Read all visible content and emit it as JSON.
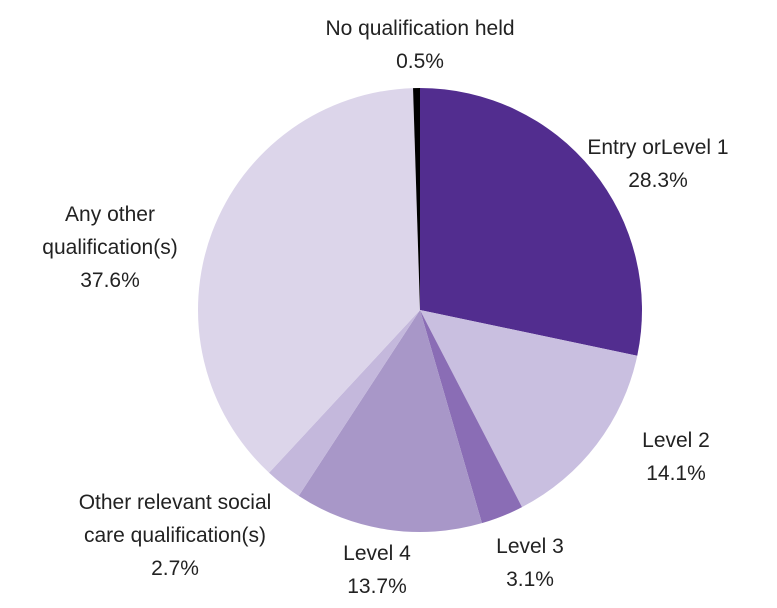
{
  "chart_data": {
    "type": "pie",
    "categories": [
      "Entry orLevel 1",
      "Level 2",
      "Level 3",
      "Level 4",
      "Other relevant social care qualification(s)",
      "Any other qualification(s)",
      "No qualification held"
    ],
    "values": [
      28.3,
      14.1,
      3.1,
      13.7,
      2.7,
      37.6,
      0.5
    ],
    "value_labels": [
      "28.3%",
      "14.1%",
      "3.1%",
      "13.7%",
      "2.7%",
      "37.6%",
      "0.5%"
    ],
    "colors": [
      "#522d8f",
      "#c9bfe0",
      "#8a6db5",
      "#a897c8",
      "#c4b8dc",
      "#dcd5ea",
      "#000000"
    ]
  }
}
